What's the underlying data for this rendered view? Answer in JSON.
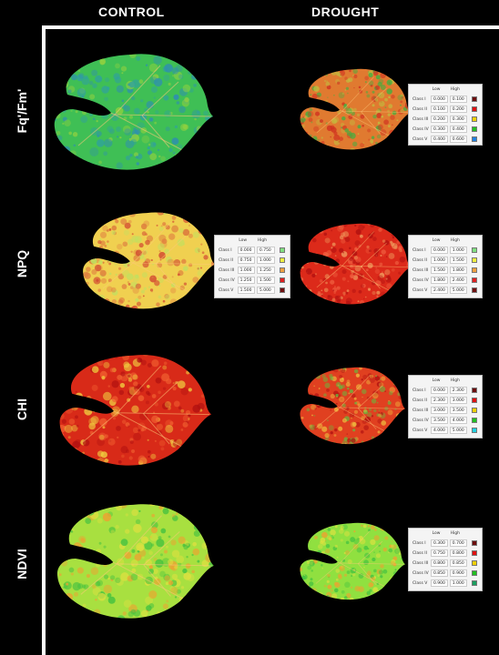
{
  "headers": {
    "control": "CONTROL",
    "drought": "DROUGHT"
  },
  "rows": [
    {
      "label": "Fq'/Fm'"
    },
    {
      "label": "NPQ"
    },
    {
      "label": "CHI"
    },
    {
      "label": "NDVI"
    }
  ],
  "legend_headers": {
    "low": "Low",
    "high": "High"
  },
  "legends": {
    "fq_drought": {
      "rows": [
        {
          "cls": "Class I",
          "low": "0.000",
          "high": "0.100",
          "color": "#6b0d0d"
        },
        {
          "cls": "Class II",
          "low": "0.100",
          "high": "0.200",
          "color": "#e01010"
        },
        {
          "cls": "Class III",
          "low": "0.200",
          "high": "0.300",
          "color": "#f0d000"
        },
        {
          "cls": "Class IV",
          "low": "0.300",
          "high": "0.400",
          "color": "#20c020"
        },
        {
          "cls": "Class V",
          "low": "0.400",
          "high": "0.600",
          "color": "#2080e0"
        }
      ]
    },
    "npq_control": {
      "rows": [
        {
          "cls": "Class I",
          "low": "0.000",
          "high": "0.750",
          "color": "#80e080"
        },
        {
          "cls": "Class II",
          "low": "0.750",
          "high": "1.000",
          "color": "#f0f040"
        },
        {
          "cls": "Class III",
          "low": "1.000",
          "high": "1.250",
          "color": "#f0a040"
        },
        {
          "cls": "Class IV",
          "low": "1.250",
          "high": "1.500",
          "color": "#e02020"
        },
        {
          "cls": "Class V",
          "low": "1.500",
          "high": "5.000",
          "color": "#701010"
        }
      ]
    },
    "npq_drought": {
      "rows": [
        {
          "cls": "Class I",
          "low": "0.000",
          "high": "1.000",
          "color": "#80e080"
        },
        {
          "cls": "Class II",
          "low": "1.000",
          "high": "1.500",
          "color": "#f0f040"
        },
        {
          "cls": "Class III",
          "low": "1.500",
          "high": "1.800",
          "color": "#f0a040"
        },
        {
          "cls": "Class IV",
          "low": "1.800",
          "high": "2.400",
          "color": "#e02020"
        },
        {
          "cls": "Class V",
          "low": "2.400",
          "high": "5.000",
          "color": "#701010"
        }
      ]
    },
    "chi_drought": {
      "rows": [
        {
          "cls": "Class I",
          "low": "0.000",
          "high": "2.300",
          "color": "#6b0d0d"
        },
        {
          "cls": "Class II",
          "low": "2.300",
          "high": "3.000",
          "color": "#e01010"
        },
        {
          "cls": "Class III",
          "low": "3.000",
          "high": "3.500",
          "color": "#f0d000"
        },
        {
          "cls": "Class IV",
          "low": "3.500",
          "high": "4.000",
          "color": "#20c020"
        },
        {
          "cls": "Class V",
          "low": "4.000",
          "high": "5.000",
          "color": "#20d0e0"
        }
      ]
    },
    "ndvi_drought": {
      "rows": [
        {
          "cls": "Class I",
          "low": "0.300",
          "high": "0.700",
          "color": "#6b0d0d"
        },
        {
          "cls": "Class II",
          "low": "0.750",
          "high": "0.800",
          "color": "#e01010"
        },
        {
          "cls": "Class III",
          "low": "0.800",
          "high": "0.850",
          "color": "#f0d000"
        },
        {
          "cls": "Class IV",
          "low": "0.850",
          "high": "0.900",
          "color": "#20c020"
        },
        {
          "cls": "Class V",
          "low": "0.900",
          "high": "1.000",
          "color": "#1aa060"
        }
      ]
    }
  },
  "leaves": {
    "fq_control": {
      "fill": "#3fbf55",
      "speckle": [
        "#2fa0a0",
        "#90d040",
        "#2f8fb0"
      ]
    },
    "fq_drought": {
      "fill": "#e07a30",
      "speckle": [
        "#d03020",
        "#c0c040",
        "#40b040"
      ]
    },
    "npq_control": {
      "fill": "#f0d050",
      "speckle": [
        "#e08040",
        "#d04030",
        "#c0e060"
      ]
    },
    "npq_drought": {
      "fill": "#dc2a1a",
      "speckle": [
        "#f06040",
        "#b01010",
        "#f0a060"
      ]
    },
    "chi_control": {
      "fill": "#d82a18",
      "speckle": [
        "#b01010",
        "#f06030",
        "#f0d040"
      ]
    },
    "chi_drought": {
      "fill": "#e04020",
      "speckle": [
        "#f0c040",
        "#b01010",
        "#60c040"
      ]
    },
    "ndvi_control": {
      "fill": "#a8e040",
      "speckle": [
        "#e0e040",
        "#40c040",
        "#f0a030"
      ]
    },
    "ndvi_drought": {
      "fill": "#90e040",
      "speckle": [
        "#e0e040",
        "#40c040",
        "#f0a030"
      ]
    }
  }
}
